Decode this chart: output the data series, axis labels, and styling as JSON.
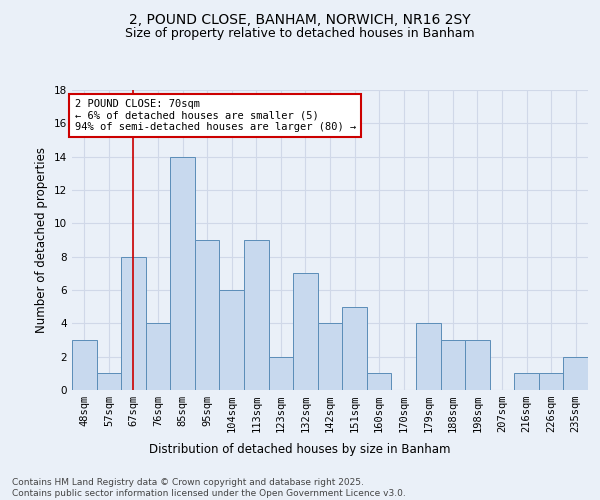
{
  "title1": "2, POUND CLOSE, BANHAM, NORWICH, NR16 2SY",
  "title2": "Size of property relative to detached houses in Banham",
  "xlabel": "Distribution of detached houses by size in Banham",
  "ylabel": "Number of detached properties",
  "categories": [
    "48sqm",
    "57sqm",
    "67sqm",
    "76sqm",
    "85sqm",
    "95sqm",
    "104sqm",
    "113sqm",
    "123sqm",
    "132sqm",
    "142sqm",
    "151sqm",
    "160sqm",
    "170sqm",
    "179sqm",
    "188sqm",
    "198sqm",
    "207sqm",
    "216sqm",
    "226sqm",
    "235sqm"
  ],
  "values": [
    3,
    1,
    8,
    4,
    14,
    9,
    6,
    9,
    2,
    7,
    4,
    5,
    1,
    0,
    4,
    3,
    3,
    0,
    1,
    1,
    2
  ],
  "bar_color": "#c8d9ee",
  "bar_edge_color": "#5b8db8",
  "grid_color": "#d0d8e8",
  "annotation_box_color": "#cc0000",
  "annotation_text": "2 POUND CLOSE: 70sqm\n← 6% of detached houses are smaller (5)\n94% of semi-detached houses are larger (80) →",
  "vline_x_index": 2,
  "vline_color": "#cc0000",
  "ylim": [
    0,
    18
  ],
  "yticks": [
    0,
    2,
    4,
    6,
    8,
    10,
    12,
    14,
    16,
    18
  ],
  "footer": "Contains HM Land Registry data © Crown copyright and database right 2025.\nContains public sector information licensed under the Open Government Licence v3.0.",
  "background_color": "#eaf0f8",
  "plot_bg_color": "#eaf0f8",
  "title_fontsize": 10,
  "subtitle_fontsize": 9,
  "axis_label_fontsize": 8.5,
  "tick_fontsize": 7.5,
  "annotation_fontsize": 7.5,
  "footer_fontsize": 6.5
}
